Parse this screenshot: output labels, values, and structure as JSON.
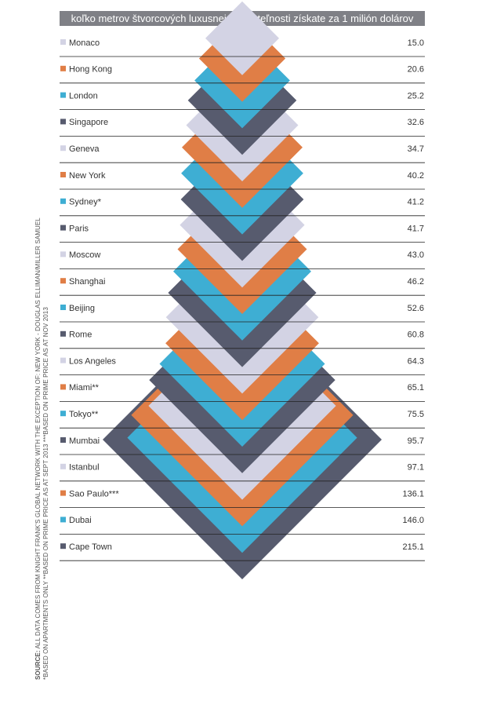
{
  "chart_data": {
    "type": "diamond-pyramid",
    "title": "koľko metrov štvorcových luxusnej nehnuteľnosti získate za 1 milión dolárov",
    "categories": [
      "Monaco",
      "Hong Kong",
      "London",
      "Singapore",
      "Geneva",
      "New York",
      "Sydney*",
      "Paris",
      "Moscow",
      "Shanghai",
      "Beijing",
      "Rome",
      "Los Angeles",
      "Miami**",
      "Tokyo**",
      "Mumbai",
      "Istanbul",
      "Sao Paulo***",
      "Dubai",
      "Cape Town"
    ],
    "values": [
      "15.0",
      "20.6",
      "25.2",
      "32.6",
      "34.7",
      "40.2",
      "41.2",
      "41.7",
      "43.0",
      "46.2",
      "52.6",
      "60.8",
      "64.3",
      "65.1",
      "75.5",
      "95.7",
      "97.1",
      "136.1",
      "146.0",
      "215.1"
    ],
    "palette": [
      "#d3d3e4",
      "#e07e46",
      "#3eaed3",
      "#575b6e"
    ]
  },
  "source": {
    "label": "SOURCE:",
    "line1": " ALL DATA COMES FROM KNIGHT FRANK'S GLOBAL NETWORK WITH THE EXCEPTION OF: NEW YORK - DOUGLAS ELLIMAN/MILLER SAMUEL",
    "line2": "*BASED ON APARTMENTS ONLY   **BASED ON PRIME PRICE AS AT SEPT 2013   ***BASED ON PRIME PRICE AS AT NOV 2013"
  }
}
